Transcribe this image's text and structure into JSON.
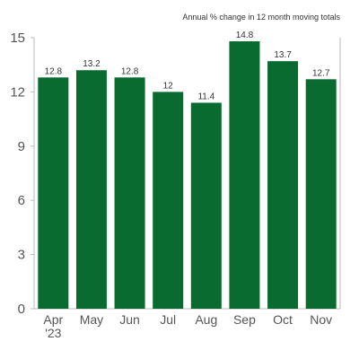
{
  "chart_data": {
    "type": "bar",
    "subtitle": "Annual % change in 12 month moving totals",
    "categories": [
      [
        "Apr",
        "'23"
      ],
      [
        "May"
      ],
      [
        "Jun"
      ],
      [
        "Jul"
      ],
      [
        "Aug"
      ],
      [
        "Sep"
      ],
      [
        "Oct"
      ],
      [
        "Nov"
      ]
    ],
    "values": [
      12.8,
      13.2,
      12.8,
      12,
      11.4,
      14.8,
      13.7,
      12.7
    ],
    "value_labels": [
      "12.8",
      "13.2",
      "12.8",
      "12",
      "11.4",
      "14.8",
      "13.7",
      "12.7"
    ],
    "ylim": [
      0,
      15
    ],
    "yticks": [
      0,
      3,
      6,
      9,
      12,
      15
    ],
    "grid": false,
    "legend": "none",
    "bar_color": "#096b30",
    "xlabel": "",
    "ylabel": ""
  }
}
